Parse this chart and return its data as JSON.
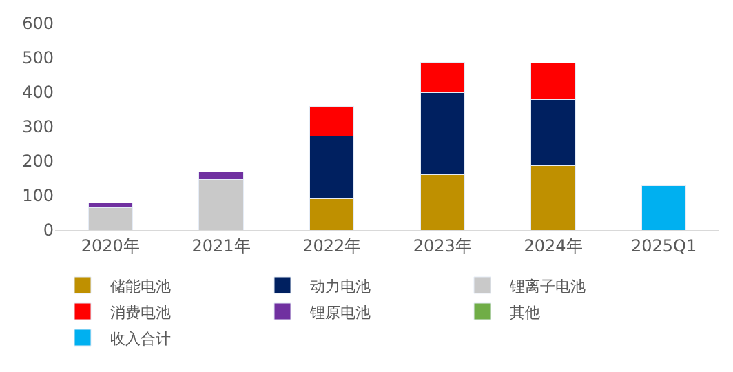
{
  "chart_data": {
    "type": "bar",
    "stacked": true,
    "categories": [
      "2020年",
      "2021年",
      "2022年",
      "2023年",
      "2024年",
      "2025Q1"
    ],
    "series": [
      {
        "name": "储能电池",
        "color": "#bf9000",
        "values": [
          null,
          null,
          92,
          162,
          188,
          null
        ]
      },
      {
        "name": "动力电池",
        "color": "#002060",
        "values": [
          null,
          null,
          182,
          237,
          192,
          null
        ]
      },
      {
        "name": "锂离子电池",
        "color": "#c9c9c9",
        "values": [
          66,
          147,
          null,
          null,
          null,
          null
        ]
      },
      {
        "name": "消费电池",
        "color": "#ff0000",
        "values": [
          null,
          null,
          86,
          89,
          105,
          null
        ]
      },
      {
        "name": "锂原电池",
        "color": "#7030a0",
        "values": [
          14,
          22,
          null,
          null,
          null,
          null
        ]
      },
      {
        "name": "其他",
        "color": "#70ad47",
        "values": [
          null,
          null,
          null,
          null,
          null,
          null
        ]
      },
      {
        "name": "收入合计",
        "color": "#00b0f0",
        "values": [
          null,
          null,
          null,
          null,
          null,
          129
        ]
      }
    ],
    "ylim": [
      0,
      600
    ],
    "yticks": [
      0,
      100,
      200,
      300,
      400,
      500,
      600
    ],
    "grid": false,
    "legend": "bottom"
  }
}
